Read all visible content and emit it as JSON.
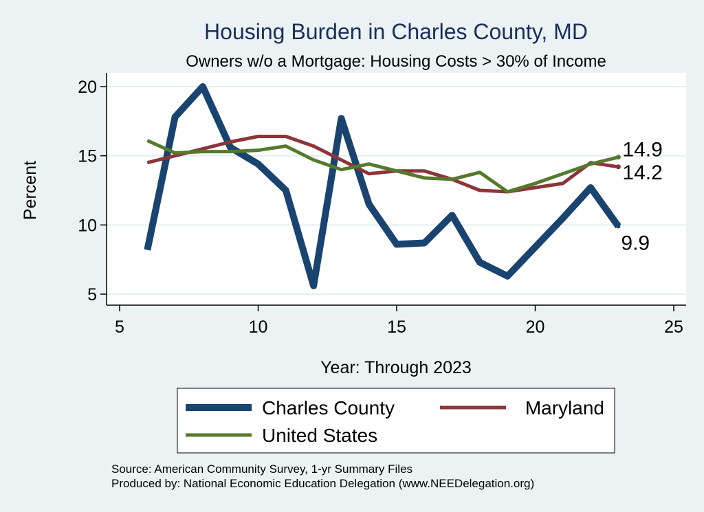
{
  "chart_data": {
    "type": "line",
    "title": "Housing Burden in Charles County, MD",
    "subtitle": "Owners w/o a Mortgage: Housing Costs > 30% of Income",
    "xlabel": "Year: Through 2023",
    "ylabel": "Percent",
    "xlim": [
      5,
      25
    ],
    "ylim": [
      5,
      20
    ],
    "xticks": [
      5,
      10,
      15,
      20,
      25
    ],
    "yticks": [
      5,
      10,
      15,
      20
    ],
    "x": [
      6,
      7,
      8,
      9,
      10,
      11,
      12,
      13,
      14,
      15,
      16,
      17,
      18,
      19,
      20,
      21,
      22,
      23
    ],
    "grid": true,
    "series": [
      {
        "name": "Charles County",
        "color": "#1a4470",
        "values": [
          8.2,
          17.8,
          20.0,
          15.6,
          14.4,
          12.5,
          5.6,
          17.7,
          11.5,
          8.6,
          8.7,
          10.7,
          7.3,
          6.3,
          8.4,
          10.5,
          12.7,
          9.9
        ],
        "end_label": "9.9"
      },
      {
        "name": "Maryland",
        "color": "#8c353b",
        "values": [
          14.5,
          15.0,
          15.5,
          16.0,
          16.4,
          16.4,
          15.7,
          14.7,
          13.7,
          13.9,
          13.9,
          13.3,
          12.5,
          12.4,
          12.7,
          13.0,
          14.5,
          14.2
        ],
        "end_label": "14.2"
      },
      {
        "name": "United States",
        "color": "#557a2e",
        "values": [
          16.1,
          15.2,
          15.3,
          15.3,
          15.4,
          15.7,
          14.7,
          14.0,
          14.4,
          13.9,
          13.4,
          13.3,
          13.8,
          12.4,
          13.0,
          13.7,
          14.4,
          14.9
        ],
        "end_label": "14.9"
      }
    ],
    "legend": [
      "Charles County",
      "Maryland",
      "United States"
    ]
  },
  "notes": {
    "source": "Source: American Community Survey, 1-yr Summary Files",
    "produced": "Produced by: National Economic Education Delegation (www.NEEDelegation.org)"
  }
}
